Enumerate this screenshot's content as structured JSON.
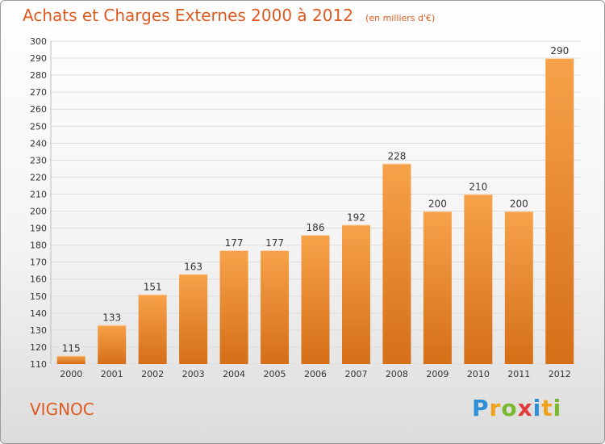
{
  "title": "Achats et Charges Externes 2000 à 2012",
  "unit": "(en milliers d'€)",
  "commune": "VIGNOC",
  "logo": {
    "letters": [
      "P",
      "r",
      "o",
      "x",
      "i",
      "t",
      "i"
    ],
    "colors": [
      "#2e8fd8",
      "#f1a11a",
      "#7cb82f",
      "#e33a3a",
      "#2e8fd8",
      "#f1a11a",
      "#7cb82f"
    ]
  },
  "colors": {
    "bar_light": "#f7a24a",
    "bar_dark": "#d56f18",
    "text_accent": "#e05a20"
  },
  "chart_data": {
    "type": "bar",
    "title": "Achats et Charges Externes 2000 à 2012",
    "subtitle": "(en milliers d'€)",
    "categories": [
      "2000",
      "2001",
      "2002",
      "2003",
      "2004",
      "2005",
      "2006",
      "2007",
      "2008",
      "2009",
      "2010",
      "2011",
      "2012"
    ],
    "values": [
      115,
      133,
      151,
      163,
      177,
      177,
      186,
      192,
      228,
      200,
      210,
      200,
      290
    ],
    "ylim": [
      110,
      300
    ],
    "yticks": [
      110,
      120,
      130,
      140,
      150,
      160,
      170,
      180,
      190,
      200,
      210,
      220,
      230,
      240,
      250,
      260,
      270,
      280,
      290,
      300
    ],
    "grid": true,
    "legend": "none"
  }
}
